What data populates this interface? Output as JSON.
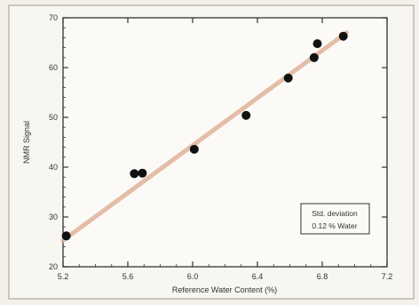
{
  "chart_data": {
    "type": "scatter",
    "title": "",
    "xlabel": "Reference Water Content (%)",
    "ylabel": "NMR Signal",
    "xlim": [
      5.2,
      7.2
    ],
    "ylim": [
      20,
      70
    ],
    "xticks": [
      "5.2",
      "5.6",
      "6.0",
      "6.4",
      "6.8",
      "7.2"
    ],
    "yticks": [
      "20",
      "30",
      "40",
      "50",
      "60",
      "70"
    ],
    "grid": false,
    "series": [
      {
        "x": [
          5.22,
          5.64,
          5.69,
          6.01,
          6.33,
          6.59,
          6.75,
          6.77,
          6.93
        ],
        "y": [
          26.2,
          38.7,
          38.8,
          43.6,
          50.4,
          57.9,
          62.0,
          64.8,
          66.3
        ]
      }
    ],
    "fit_line": {
      "x": [
        5.2,
        6.95
      ],
      "y": [
        25.3,
        67.0
      ]
    },
    "annotation": {
      "line1": "Std. deviation",
      "line2": "0.12 % Water"
    }
  },
  "colors": {
    "points": "#111111",
    "fit_line": "#e0b39a",
    "plot_frame": "#333333",
    "background": "#f4f1ea"
  }
}
